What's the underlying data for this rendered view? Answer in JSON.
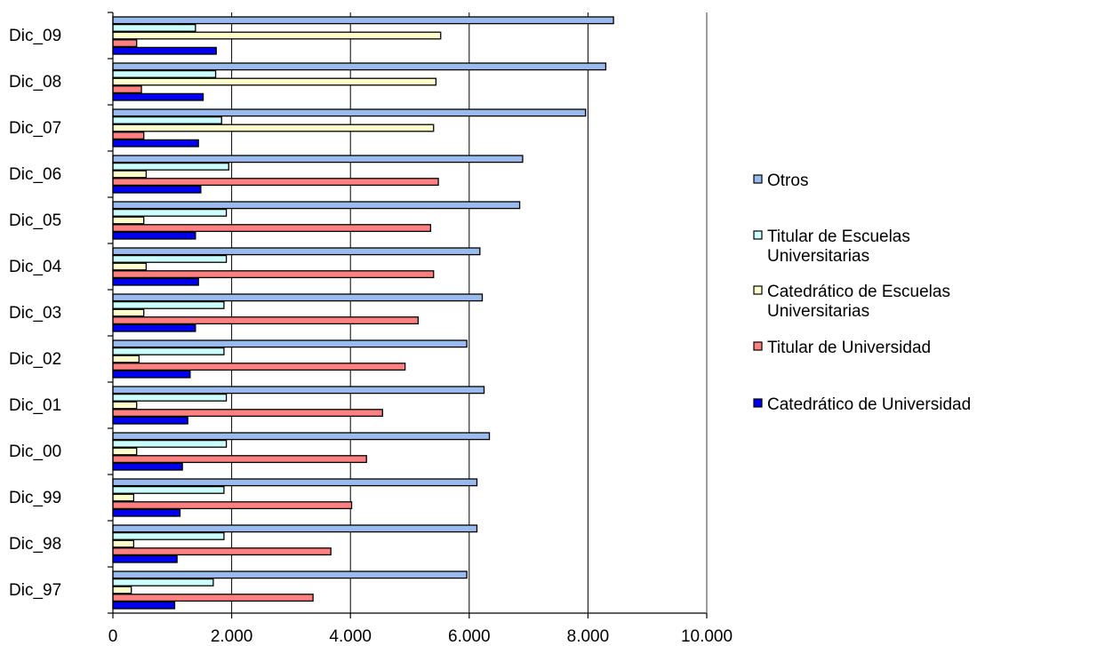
{
  "chart_data": {
    "type": "bar",
    "orientation": "horizontal",
    "categories": [
      "Dic_09",
      "Dic_08",
      "Dic_07",
      "Dic_06",
      "Dic_05",
      "Dic_04",
      "Dic_03",
      "Dic_02",
      "Dic_01",
      "Dic_00",
      "Dic_99",
      "Dic_98",
      "Dic_97"
    ],
    "series": [
      {
        "name": "Otros",
        "color": "#99bbee",
        "values": [
          8430,
          8300,
          7960,
          6900,
          6850,
          6180,
          6220,
          5960,
          6250,
          6340,
          6130,
          6130,
          5960
        ]
      },
      {
        "name": "Titular de Escuelas Universitarias",
        "color": "#ccffff",
        "values": [
          1390,
          1730,
          1830,
          1950,
          1910,
          1910,
          1870,
          1870,
          1910,
          1910,
          1870,
          1870,
          1690
        ]
      },
      {
        "name": "Catedrático de Escuelas Universitarias",
        "color": "#ffffcc",
        "values": [
          5520,
          5440,
          5400,
          560,
          520,
          560,
          520,
          440,
          400,
          400,
          350,
          350,
          310
        ]
      },
      {
        "name": "Titular de Universidad",
        "color": "#ff8080",
        "values": [
          400,
          480,
          520,
          5480,
          5350,
          5400,
          5140,
          4920,
          4540,
          4270,
          4020,
          3670,
          3370
        ]
      },
      {
        "name": "Catedrático de Universidad",
        "color": "#0000ee",
        "values": [
          1740,
          1520,
          1440,
          1480,
          1390,
          1440,
          1390,
          1300,
          1260,
          1170,
          1130,
          1080,
          1040
        ]
      }
    ],
    "legend_order": [
      "Otros",
      "Titular de Escuelas Universitarias",
      "Catedrático de Escuelas Universitarias",
      "Titular de Universidad",
      "Catedrático de Universidad"
    ],
    "legend_lines": [
      [
        "Otros"
      ],
      [
        "Titular de Escuelas",
        "Universitarias"
      ],
      [
        "Catedrático de Escuelas",
        "Universitarias"
      ],
      [
        "Titular de Universidad"
      ],
      [
        "Catedrático de Universidad"
      ]
    ],
    "xlim": [
      0,
      10000
    ],
    "xticks": [
      0,
      2000,
      4000,
      6000,
      8000,
      10000
    ],
    "xtick_labels": [
      "0",
      "2.000",
      "4.000",
      "6.000",
      "8.000",
      "10.000"
    ],
    "grid": "vertical",
    "legend_position": "right"
  }
}
